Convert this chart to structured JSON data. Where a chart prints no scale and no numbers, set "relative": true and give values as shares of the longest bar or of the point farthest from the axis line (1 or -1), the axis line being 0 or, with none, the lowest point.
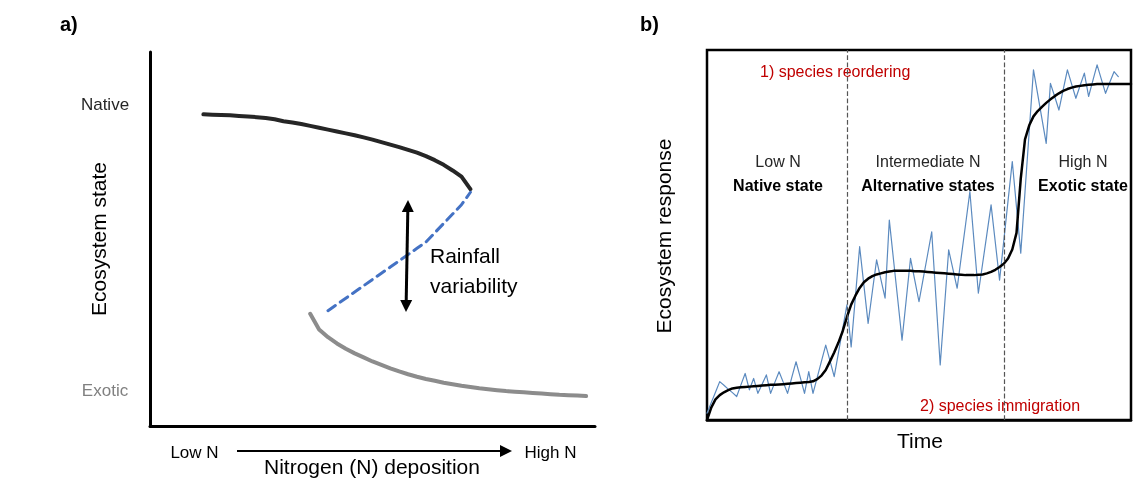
{
  "chart_data": [
    {
      "type": "line",
      "title": "a)",
      "xlabel": "Nitrogen (N) deposition",
      "ylabel": "Ecosystem state",
      "relative": true,
      "marker": "none",
      "categories": [
        null,
        null,
        null,
        null,
        null,
        "Low N",
        null,
        null,
        null,
        null,
        null,
        null,
        null,
        null,
        null,
        null,
        null,
        null,
        null,
        null,
        null,
        null,
        null,
        null,
        null,
        null,
        null,
        null,
        null,
        null,
        null,
        null,
        null,
        null,
        null,
        null,
        null,
        null,
        null,
        null,
        null,
        null,
        null,
        null,
        null,
        "High N",
        null,
        null,
        null,
        null,
        null
      ],
      "annotations": [
        "Native",
        "Exotic",
        "Rainfall variability"
      ],
      "series": [
        {
          "color": "#262626",
          "line_style": "solid",
          "values": [
            null,
            null,
            null,
            null,
            null,
            null,
            1.0,
            0.999,
            0.998,
            0.997,
            0.995,
            0.993,
            0.991,
            0.988,
            0.984,
            0.978,
            0.974,
            0.969,
            0.963,
            0.957,
            0.951,
            0.945,
            0.939,
            0.933,
            0.926,
            0.919,
            0.911,
            0.903,
            0.895,
            0.886,
            0.877,
            0.866,
            0.853,
            0.838,
            0.82,
            0.8,
            0.76,
            null,
            null,
            null,
            null,
            null,
            null,
            null,
            null,
            null,
            null,
            null,
            null,
            null,
            null
          ]
        },
        {
          "color": "#4472c4",
          "line_style": "dashed",
          "values": [
            null,
            null,
            null,
            null,
            null,
            null,
            null,
            null,
            null,
            null,
            null,
            null,
            null,
            null,
            null,
            null,
            null,
            null,
            null,
            null,
            0.37,
            0.39,
            0.41,
            0.43,
            0.45,
            0.47,
            0.49,
            0.51,
            0.53,
            0.55,
            0.57,
            0.59,
            0.62,
            0.65,
            0.68,
            0.71,
            0.75,
            null,
            null,
            null,
            null,
            null,
            null,
            null,
            null,
            null,
            null,
            null,
            null,
            null,
            null
          ]
        },
        {
          "color": "#8c8c8c",
          "line_style": "solid",
          "values": [
            null,
            null,
            null,
            null,
            null,
            null,
            null,
            null,
            null,
            null,
            null,
            null,
            null,
            null,
            null,
            null,
            null,
            null,
            0.36,
            0.31,
            0.285,
            0.265,
            0.248,
            0.233,
            0.22,
            0.207,
            0.196,
            0.185,
            0.175,
            0.166,
            0.158,
            0.151,
            0.145,
            0.139,
            0.134,
            0.129,
            0.125,
            0.121,
            0.118,
            0.115,
            0.112,
            0.11,
            0.108,
            0.106,
            0.104,
            0.102,
            0.1,
            0.099,
            0.098,
            0.096,
            null
          ]
        }
      ]
    },
    {
      "type": "line",
      "title": "b)",
      "xlabel": "Time",
      "ylabel": "Ecosystem response",
      "relative": true,
      "marker": "none",
      "categories": [
        null,
        null,
        null,
        null,
        null,
        null,
        null,
        null,
        null,
        null,
        null,
        null,
        null,
        null,
        null,
        null,
        null,
        null,
        null,
        null,
        null,
        null,
        null,
        null,
        null,
        null,
        null,
        null,
        null,
        null,
        null,
        null,
        null,
        null,
        null,
        null,
        null,
        null,
        null,
        null,
        null,
        null,
        null,
        null,
        null,
        null,
        null,
        null,
        null,
        null,
        null,
        null,
        null,
        null,
        null,
        null,
        null,
        null,
        null,
        null,
        null,
        null,
        null,
        null,
        null,
        null,
        null,
        null,
        null,
        null,
        null,
        null,
        null,
        null,
        null,
        null,
        null,
        null,
        null,
        null,
        null,
        null,
        null,
        null,
        null,
        null,
        null,
        null,
        null,
        null,
        null,
        null,
        null,
        null,
        null,
        null,
        null,
        null,
        null,
        null,
        null
      ],
      "annotations": [
        "1) species reordering",
        "Low N",
        "Native state",
        "Intermediate N",
        "Alternative states",
        "High N",
        "Exotic state",
        "2) species immigration"
      ],
      "series": [
        {
          "color": "#5b8abf",
          "line_style": "solid",
          "values": [
            0.019,
            0.049,
            0.078,
            0.108,
            0.098,
            0.087,
            0.077,
            0.066,
            0.099,
            0.131,
            0.085,
            0.117,
            0.075,
            0.101,
            0.127,
            0.075,
            0.106,
            0.136,
            0.106,
            0.075,
            0.12,
            0.164,
            0.12,
            0.075,
            0.136,
            0.075,
            0.12,
            0.166,
            0.211,
            0.167,
            0.122,
            0.189,
            0.257,
            0.324,
            0.206,
            0.347,
            0.488,
            0.38,
            0.272,
            0.362,
            0.451,
            0.397,
            0.343,
            0.563,
            0.45,
            0.338,
            0.225,
            0.34,
            0.455,
            0.394,
            0.333,
            0.399,
            0.464,
            0.53,
            0.343,
            0.155,
            0.317,
            0.479,
            0.425,
            0.371,
            0.462,
            0.552,
            0.643,
            0.5,
            0.357,
            0.44,
            0.523,
            0.606,
            0.5,
            0.394,
            0.505,
            0.617,
            0.728,
            0.599,
            0.47,
            0.642,
            0.814,
            0.986,
            0.917,
            0.848,
            0.779,
            0.948,
            0.911,
            0.873,
            0.93,
            0.986,
            0.946,
            0.906,
            0.942,
            0.977,
            0.911,
            0.956,
            1.0,
            0.96,
            0.92,
            0.951,
            0.981,
            0.967,
            null,
            null,
            null
          ]
        },
        {
          "color": "#000000",
          "line_style": "solid",
          "values": [
            0,
            0.035,
            0.058,
            0.07,
            0.078,
            0.084,
            0.089,
            0.091,
            0.092,
            0.093,
            0.094,
            0.095,
            0.096,
            0.097,
            0.098,
            0.099,
            0.099,
            0.1,
            0.101,
            0.102,
            0.103,
            0.104,
            0.105,
            0.106,
            0.107,
            0.109,
            0.115,
            0.125,
            0.141,
            0.165,
            0.19,
            0.218,
            0.25,
            0.29,
            0.325,
            0.35,
            0.372,
            0.388,
            0.398,
            0.405,
            0.41,
            0.413,
            0.416,
            0.418,
            0.42,
            0.42,
            0.42,
            0.42,
            0.42,
            0.419,
            0.419,
            0.418,
            0.417,
            0.416,
            0.415,
            0.414,
            0.413,
            0.412,
            0.411,
            0.41,
            0.409,
            0.408,
            0.408,
            0.408,
            0.409,
            0.41,
            0.413,
            0.417,
            0.423,
            0.431,
            0.44,
            0.455,
            0.48,
            0.527,
            0.68,
            0.79,
            0.83,
            0.855,
            0.87,
            0.882,
            0.893,
            0.903,
            0.912,
            0.92,
            0.927,
            0.932,
            0.936,
            0.939,
            0.941,
            0.943,
            0.944,
            0.945,
            0.946,
            0.946,
            0.946,
            0.946,
            0.946,
            0.946,
            0.946,
            0.946,
            0.946
          ]
        }
      ]
    }
  ]
}
